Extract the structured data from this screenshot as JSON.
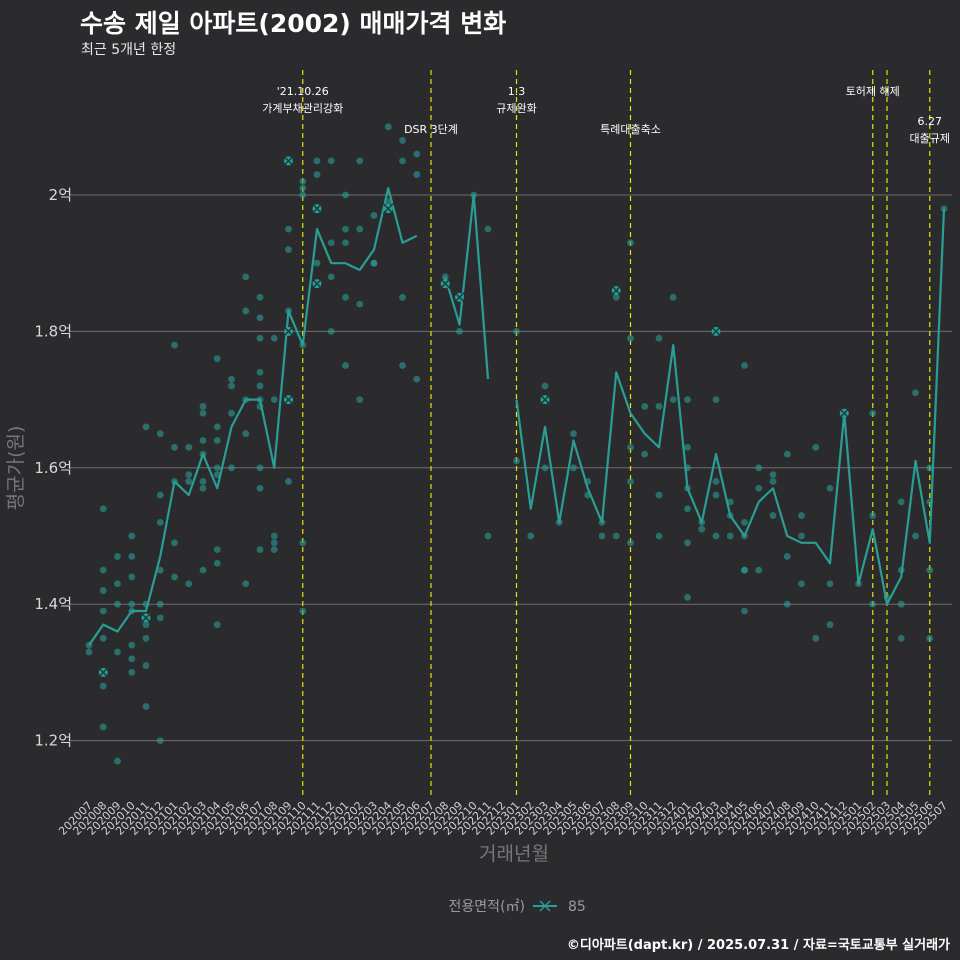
{
  "header": {
    "title": "수송 제일 아파트(2002) 매매가격 변화",
    "subtitle": "최근 5개년 한정",
    "caption": "©디아파트(dapt.kr) / 2025.07.31 / 자료=국토교통부 실거래가"
  },
  "colors": {
    "background": "#2b2b2d",
    "series": "#2a9d95",
    "vline": "#e6e600",
    "grid": "#6e6e6e"
  },
  "chart_data": {
    "type": "line",
    "title": "수송 제일 아파트(2002) 매매가격 변화",
    "subtitle": "최근 5개년 한정",
    "xlabel": "거래년월",
    "ylabel": "평균가(원)",
    "ylim": [
      1.12,
      2.2
    ],
    "yticks": [
      1.2,
      1.4,
      1.6,
      1.8,
      2.0
    ],
    "ytick_labels": [
      "1.2억",
      "1.4억",
      "1.6억",
      "1.8억",
      "2억"
    ],
    "grid": "horizontal major",
    "legend": {
      "title": "전용면적(㎡)",
      "position": "bottom",
      "entries": [
        "85"
      ]
    },
    "categories": [
      "202007",
      "202008",
      "202009",
      "202010",
      "202011",
      "202012",
      "202101",
      "202102",
      "202103",
      "202104",
      "202105",
      "202106",
      "202107",
      "202108",
      "202109",
      "202110",
      "202111",
      "202112",
      "202201",
      "202202",
      "202203",
      "202204",
      "202205",
      "202206",
      "202207",
      "202208",
      "202209",
      "202210",
      "202211",
      "202212",
      "202301",
      "202302",
      "202303",
      "202304",
      "202305",
      "202306",
      "202307",
      "202308",
      "202309",
      "202310",
      "202311",
      "202312",
      "202401",
      "202402",
      "202403",
      "202404",
      "202405",
      "202406",
      "202407",
      "202408",
      "202409",
      "202410",
      "202411",
      "202412",
      "202501",
      "202502",
      "202503",
      "202504",
      "202505",
      "202506",
      "202507"
    ],
    "series": [
      {
        "name": "85",
        "values": [
          1.34,
          1.37,
          1.36,
          1.39,
          1.39,
          1.47,
          1.58,
          1.56,
          1.62,
          1.57,
          1.66,
          1.7,
          1.7,
          1.6,
          1.83,
          1.78,
          1.95,
          1.9,
          1.9,
          1.89,
          1.92,
          2.01,
          1.93,
          1.94,
          null,
          1.88,
          1.81,
          2.0,
          1.73,
          null,
          1.7,
          1.54,
          1.66,
          1.52,
          1.64,
          1.57,
          1.52,
          1.74,
          1.68,
          1.65,
          1.63,
          1.78,
          1.57,
          1.52,
          1.62,
          1.53,
          1.5,
          1.55,
          1.57,
          1.5,
          1.49,
          1.49,
          1.46,
          1.68,
          1.43,
          1.51,
          1.4,
          1.44,
          1.61,
          1.49,
          1.98
        ]
      }
    ],
    "scatter_points": [
      [
        0,
        1.33
      ],
      [
        0,
        1.34
      ],
      [
        1,
        1.3
      ],
      [
        1,
        1.28
      ],
      [
        1,
        1.22
      ],
      [
        1,
        1.35
      ],
      [
        1,
        1.39
      ],
      [
        1,
        1.42
      ],
      [
        1,
        1.45
      ],
      [
        1,
        1.54
      ],
      [
        2,
        1.17
      ],
      [
        2,
        1.33
      ],
      [
        2,
        1.4
      ],
      [
        2,
        1.43
      ],
      [
        2,
        1.47
      ],
      [
        3,
        1.3
      ],
      [
        3,
        1.32
      ],
      [
        3,
        1.34
      ],
      [
        3,
        1.39
      ],
      [
        3,
        1.4
      ],
      [
        3,
        1.44
      ],
      [
        3,
        1.47
      ],
      [
        3,
        1.5
      ],
      [
        4,
        1.25
      ],
      [
        4,
        1.31
      ],
      [
        4,
        1.35
      ],
      [
        4,
        1.37
      ],
      [
        4,
        1.38
      ],
      [
        4,
        1.4
      ],
      [
        4,
        1.66
      ],
      [
        5,
        1.2
      ],
      [
        5,
        1.38
      ],
      [
        5,
        1.4
      ],
      [
        5,
        1.45
      ],
      [
        5,
        1.52
      ],
      [
        5,
        1.56
      ],
      [
        5,
        1.65
      ],
      [
        6,
        1.44
      ],
      [
        6,
        1.49
      ],
      [
        6,
        1.58
      ],
      [
        6,
        1.63
      ],
      [
        6,
        1.78
      ],
      [
        7,
        1.43
      ],
      [
        7,
        1.58
      ],
      [
        7,
        1.59
      ],
      [
        7,
        1.63
      ],
      [
        8,
        1.45
      ],
      [
        8,
        1.57
      ],
      [
        8,
        1.58
      ],
      [
        8,
        1.62
      ],
      [
        8,
        1.64
      ],
      [
        8,
        1.68
      ],
      [
        8,
        1.69
      ],
      [
        9,
        1.37
      ],
      [
        9,
        1.46
      ],
      [
        9,
        1.48
      ],
      [
        9,
        1.59
      ],
      [
        9,
        1.6
      ],
      [
        9,
        1.64
      ],
      [
        9,
        1.66
      ],
      [
        9,
        1.76
      ],
      [
        10,
        1.6
      ],
      [
        10,
        1.68
      ],
      [
        10,
        1.72
      ],
      [
        10,
        1.73
      ],
      [
        11,
        1.43
      ],
      [
        11,
        1.65
      ],
      [
        11,
        1.7
      ],
      [
        11,
        1.83
      ],
      [
        11,
        1.88
      ],
      [
        12,
        1.48
      ],
      [
        12,
        1.57
      ],
      [
        12,
        1.6
      ],
      [
        12,
        1.69
      ],
      [
        12,
        1.7
      ],
      [
        12,
        1.72
      ],
      [
        12,
        1.74
      ],
      [
        12,
        1.79
      ],
      [
        12,
        1.82
      ],
      [
        12,
        1.85
      ],
      [
        13,
        1.48
      ],
      [
        13,
        1.49
      ],
      [
        13,
        1.5
      ],
      [
        13,
        1.7
      ],
      [
        13,
        1.79
      ],
      [
        14,
        1.58
      ],
      [
        14,
        1.7
      ],
      [
        14,
        1.8
      ],
      [
        14,
        1.83
      ],
      [
        14,
        1.92
      ],
      [
        14,
        1.95
      ],
      [
        14,
        2.05
      ],
      [
        15,
        1.39
      ],
      [
        15,
        1.49
      ],
      [
        15,
        1.78
      ],
      [
        15,
        2.0
      ],
      [
        15,
        2.01
      ],
      [
        15,
        2.02
      ],
      [
        16,
        1.87
      ],
      [
        16,
        1.9
      ],
      [
        16,
        1.98
      ],
      [
        16,
        2.03
      ],
      [
        16,
        2.05
      ],
      [
        17,
        1.8
      ],
      [
        17,
        1.88
      ],
      [
        17,
        1.93
      ],
      [
        17,
        2.05
      ],
      [
        18,
        1.75
      ],
      [
        18,
        1.85
      ],
      [
        18,
        1.93
      ],
      [
        18,
        1.95
      ],
      [
        18,
        2.0
      ],
      [
        19,
        1.7
      ],
      [
        19,
        1.84
      ],
      [
        19,
        1.95
      ],
      [
        19,
        2.05
      ],
      [
        20,
        1.9
      ],
      [
        20,
        1.9
      ],
      [
        20,
        1.97
      ],
      [
        21,
        1.98
      ],
      [
        21,
        1.99
      ],
      [
        21,
        2.1
      ],
      [
        22,
        1.75
      ],
      [
        22,
        1.85
      ],
      [
        22,
        2.05
      ],
      [
        22,
        2.08
      ],
      [
        23,
        1.73
      ],
      [
        23,
        2.03
      ],
      [
        23,
        2.06
      ],
      [
        25,
        1.87
      ],
      [
        25,
        1.88
      ],
      [
        26,
        1.8
      ],
      [
        26,
        1.85
      ],
      [
        27,
        2.0
      ],
      [
        28,
        1.5
      ],
      [
        28,
        1.95
      ],
      [
        30,
        1.61
      ],
      [
        30,
        1.8
      ],
      [
        31,
        1.5
      ],
      [
        32,
        1.6
      ],
      [
        32,
        1.7
      ],
      [
        32,
        1.72
      ],
      [
        33,
        1.52
      ],
      [
        34,
        1.6
      ],
      [
        34,
        1.65
      ],
      [
        35,
        1.56
      ],
      [
        35,
        1.58
      ],
      [
        36,
        1.5
      ],
      [
        36,
        1.52
      ],
      [
        37,
        1.5
      ],
      [
        37,
        1.85
      ],
      [
        37,
        1.86
      ],
      [
        38,
        1.49
      ],
      [
        38,
        1.58
      ],
      [
        38,
        1.63
      ],
      [
        38,
        1.79
      ],
      [
        38,
        1.93
      ],
      [
        39,
        1.62
      ],
      [
        39,
        1.69
      ],
      [
        40,
        1.5
      ],
      [
        40,
        1.56
      ],
      [
        40,
        1.69
      ],
      [
        40,
        1.79
      ],
      [
        41,
        1.7
      ],
      [
        41,
        1.85
      ],
      [
        42,
        1.41
      ],
      [
        42,
        1.49
      ],
      [
        42,
        1.54
      ],
      [
        42,
        1.57
      ],
      [
        42,
        1.6
      ],
      [
        42,
        1.63
      ],
      [
        42,
        1.7
      ],
      [
        43,
        1.51
      ],
      [
        43,
        1.52
      ],
      [
        44,
        1.5
      ],
      [
        44,
        1.56
      ],
      [
        44,
        1.58
      ],
      [
        44,
        1.7
      ],
      [
        44,
        1.8
      ],
      [
        45,
        1.5
      ],
      [
        45,
        1.53
      ],
      [
        45,
        1.55
      ],
      [
        46,
        1.39
      ],
      [
        46,
        1.45
      ],
      [
        46,
        1.45
      ],
      [
        46,
        1.5
      ],
      [
        46,
        1.52
      ],
      [
        46,
        1.75
      ],
      [
        47,
        1.45
      ],
      [
        47,
        1.57
      ],
      [
        47,
        1.6
      ],
      [
        48,
        1.53
      ],
      [
        48,
        1.58
      ],
      [
        48,
        1.59
      ],
      [
        49,
        1.4
      ],
      [
        49,
        1.47
      ],
      [
        49,
        1.62
      ],
      [
        50,
        1.43
      ],
      [
        50,
        1.5
      ],
      [
        50,
        1.53
      ],
      [
        51,
        1.35
      ],
      [
        51,
        1.63
      ],
      [
        52,
        1.37
      ],
      [
        52,
        1.43
      ],
      [
        52,
        1.57
      ],
      [
        53,
        1.68
      ],
      [
        54,
        1.43
      ],
      [
        55,
        1.4
      ],
      [
        55,
        1.53
      ],
      [
        55,
        1.68
      ],
      [
        56,
        1.41
      ],
      [
        57,
        1.35
      ],
      [
        57,
        1.4
      ],
      [
        57,
        1.45
      ],
      [
        57,
        1.55
      ],
      [
        58,
        1.5
      ],
      [
        58,
        1.71
      ],
      [
        59,
        1.35
      ],
      [
        59,
        1.45
      ],
      [
        59,
        1.55
      ],
      [
        59,
        1.6
      ],
      [
        60,
        1.98
      ]
    ],
    "x_markers": [
      [
        1,
        1.3
      ],
      [
        4,
        1.38
      ],
      [
        14,
        2.05
      ],
      [
        14,
        1.8
      ],
      [
        14,
        1.7
      ],
      [
        16,
        1.98
      ],
      [
        16,
        1.87
      ],
      [
        21,
        1.98
      ],
      [
        25,
        1.87
      ],
      [
        26,
        1.85
      ],
      [
        32,
        1.7
      ],
      [
        37,
        1.86
      ],
      [
        44,
        1.8
      ],
      [
        53,
        1.68
      ]
    ],
    "annotations": [
      {
        "index": 15,
        "lines": [
          "'21.10.26",
          "가계부채관리강화"
        ],
        "row": 1
      },
      {
        "index": 24,
        "lines": [
          "DSR 3단계"
        ],
        "row": 2
      },
      {
        "index": 30,
        "lines": [
          "1.3",
          "규제완화"
        ],
        "row": 1
      },
      {
        "index": 38,
        "lines": [
          "특례대출축소"
        ],
        "row": 2
      },
      {
        "index": 55,
        "lines": [
          "토허제 해제"
        ],
        "row": 1
      },
      {
        "index": 56,
        "lines": [],
        "row": 0
      },
      {
        "index": 59,
        "lines": [
          "6.27",
          "대출규제"
        ],
        "row": 3
      }
    ]
  }
}
